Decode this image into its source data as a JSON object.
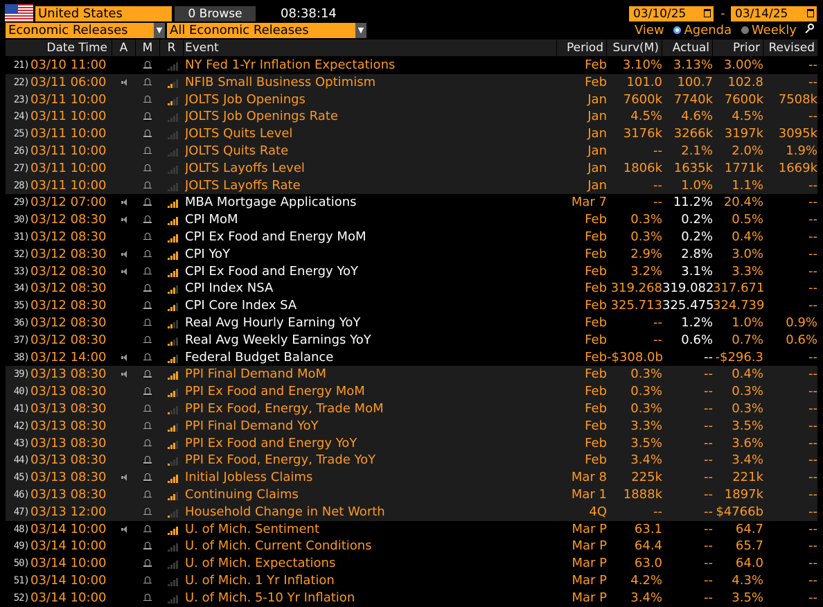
{
  "header": {
    "country": "United States",
    "browse_label": "0 Browse",
    "clock": "08:38:14",
    "date_from": "03/10/25",
    "date_to": "03/14/25",
    "date_sep": "-",
    "category": "Economic Releases",
    "filter": "All Economic Releases",
    "view_label": "View",
    "view_agenda": "Agenda",
    "view_weekly": "Weekly"
  },
  "colors": {
    "accent": "#ffa31a",
    "row_alt": "#1d1d1d"
  },
  "columns": [
    "Date Time",
    "A",
    "M",
    "R",
    "Event",
    "Period",
    "Surv(M)",
    "Actual",
    "Prior",
    "Revised"
  ],
  "rows": [
    {
      "idx": "21)",
      "dt": "03/10 11:00",
      "a": false,
      "r": 0,
      "event": "NY Fed 1-Yr Inflation Expectations",
      "period": "Feb",
      "surv": "3.10%",
      "actual": "3.13%",
      "prior": "3.00%",
      "revised": "--",
      "white": false,
      "bg": "first"
    },
    {
      "idx": "22)",
      "dt": "03/11 06:00",
      "a": true,
      "r": 2,
      "event": "NFIB Small Business Optimism",
      "period": "Feb",
      "surv": "101.0",
      "actual": "100.7",
      "prior": "102.8",
      "revised": "--",
      "white": false,
      "bg": "gray"
    },
    {
      "idx": "23)",
      "dt": "03/11 10:00",
      "a": false,
      "r": 2,
      "event": "JOLTS Job Openings",
      "period": "Jan",
      "surv": "7600k",
      "actual": "7740k",
      "prior": "7600k",
      "revised": "7508k",
      "white": false,
      "bg": "gray"
    },
    {
      "idx": "24)",
      "dt": "03/11 10:00",
      "a": false,
      "r": 0,
      "event": "JOLTS Job Openings Rate",
      "period": "Jan",
      "surv": "4.5%",
      "actual": "4.6%",
      "prior": "4.5%",
      "revised": "--",
      "white": false,
      "bg": "gray"
    },
    {
      "idx": "25)",
      "dt": "03/11 10:00",
      "a": false,
      "r": 0,
      "event": "JOLTS Quits Level",
      "period": "Jan",
      "surv": "3176k",
      "actual": "3266k",
      "prior": "3197k",
      "revised": "3095k",
      "white": false,
      "bg": "gray"
    },
    {
      "idx": "26)",
      "dt": "03/11 10:00",
      "a": false,
      "r": 0,
      "event": "JOLTS Quits Rate",
      "period": "Jan",
      "surv": "--",
      "actual": "2.1%",
      "prior": "2.0%",
      "revised": "1.9%",
      "white": false,
      "bg": "gray"
    },
    {
      "idx": "27)",
      "dt": "03/11 10:00",
      "a": false,
      "r": 0,
      "event": "JOLTS Layoffs Level",
      "period": "Jan",
      "surv": "1806k",
      "actual": "1635k",
      "prior": "1771k",
      "revised": "1669k",
      "white": false,
      "bg": "gray"
    },
    {
      "idx": "28)",
      "dt": "03/11 10:00",
      "a": false,
      "r": 0,
      "event": "JOLTS Layoffs Rate",
      "period": "Jan",
      "surv": "--",
      "actual": "1.0%",
      "prior": "1.1%",
      "revised": "--",
      "white": false,
      "bg": "gray"
    },
    {
      "idx": "29)",
      "dt": "03/12 07:00",
      "a": true,
      "r": 4,
      "event": "MBA Mortgage Applications",
      "period": "Mar 7",
      "surv": "--",
      "actual": "11.2%",
      "prior": "20.4%",
      "revised": "--",
      "white": true,
      "bg": "dark"
    },
    {
      "idx": "30)",
      "dt": "03/12 08:30",
      "a": true,
      "r": 4,
      "event": "CPI MoM",
      "period": "Feb",
      "surv": "0.3%",
      "actual": "0.2%",
      "prior": "0.5%",
      "revised": "--",
      "white": true,
      "bg": "dark"
    },
    {
      "idx": "31)",
      "dt": "03/12 08:30",
      "a": false,
      "r": 4,
      "event": "CPI Ex Food and Energy MoM",
      "period": "Feb",
      "surv": "0.3%",
      "actual": "0.2%",
      "prior": "0.4%",
      "revised": "--",
      "white": true,
      "bg": "dark"
    },
    {
      "idx": "32)",
      "dt": "03/12 08:30",
      "a": true,
      "r": 4,
      "event": "CPI YoY",
      "period": "Feb",
      "surv": "2.9%",
      "actual": "2.8%",
      "prior": "3.0%",
      "revised": "--",
      "white": true,
      "bg": "dark"
    },
    {
      "idx": "33)",
      "dt": "03/12 08:30",
      "a": true,
      "r": 4,
      "event": "CPI Ex Food and Energy YoY",
      "period": "Feb",
      "surv": "3.2%",
      "actual": "3.1%",
      "prior": "3.3%",
      "revised": "--",
      "white": true,
      "bg": "dark"
    },
    {
      "idx": "34)",
      "dt": "03/12 08:30",
      "a": false,
      "r": 3,
      "event": "CPI Index NSA",
      "period": "Feb",
      "surv": "319.268",
      "actual": "319.082",
      "prior": "317.671",
      "revised": "--",
      "white": true,
      "bg": "dark"
    },
    {
      "idx": "35)",
      "dt": "03/12 08:30",
      "a": false,
      "r": 3,
      "event": "CPI Core Index SA",
      "period": "Feb",
      "surv": "325.713",
      "actual": "325.475",
      "prior": "324.739",
      "revised": "--",
      "white": true,
      "bg": "dark"
    },
    {
      "idx": "36)",
      "dt": "03/12 08:30",
      "a": false,
      "r": 2,
      "event": "Real Avg Hourly Earning YoY",
      "period": "Feb",
      "surv": "--",
      "actual": "1.2%",
      "prior": "1.0%",
      "revised": "0.9%",
      "white": true,
      "bg": "dark"
    },
    {
      "idx": "37)",
      "dt": "03/12 08:30",
      "a": false,
      "r": 2,
      "event": "Real Avg Weekly Earnings YoY",
      "period": "Feb",
      "surv": "--",
      "actual": "0.6%",
      "prior": "0.7%",
      "revised": "0.6%",
      "white": true,
      "bg": "dark"
    },
    {
      "idx": "38)",
      "dt": "03/12 14:00",
      "a": true,
      "r": 3,
      "event": "Federal Budget Balance",
      "period": "Feb",
      "surv": "-$308.0b",
      "actual": "--",
      "prior": "-$296.3",
      "revised": "--",
      "white": true,
      "bg": "dark"
    },
    {
      "idx": "39)",
      "dt": "03/13 08:30",
      "a": true,
      "r": 4,
      "event": "PPI Final Demand MoM",
      "period": "Feb",
      "surv": "0.3%",
      "actual": "--",
      "prior": "0.4%",
      "revised": "--",
      "white": false,
      "bg": "gray"
    },
    {
      "idx": "40)",
      "dt": "03/13 08:30",
      "a": false,
      "r": 3,
      "event": "PPI Ex Food and Energy MoM",
      "period": "Feb",
      "surv": "0.3%",
      "actual": "--",
      "prior": "0.3%",
      "revised": "--",
      "white": false,
      "bg": "gray"
    },
    {
      "idx": "41)",
      "dt": "03/13 08:30",
      "a": false,
      "r": 1,
      "event": "PPI Ex Food, Energy, Trade MoM",
      "period": "Feb",
      "surv": "0.3%",
      "actual": "--",
      "prior": "0.3%",
      "revised": "--",
      "white": false,
      "bg": "gray"
    },
    {
      "idx": "42)",
      "dt": "03/13 08:30",
      "a": false,
      "r": 3,
      "event": "PPI Final Demand YoY",
      "period": "Feb",
      "surv": "3.3%",
      "actual": "--",
      "prior": "3.5%",
      "revised": "--",
      "white": false,
      "bg": "gray"
    },
    {
      "idx": "43)",
      "dt": "03/13 08:30",
      "a": false,
      "r": 3,
      "event": "PPI Ex Food and Energy YoY",
      "period": "Feb",
      "surv": "3.5%",
      "actual": "--",
      "prior": "3.6%",
      "revised": "--",
      "white": false,
      "bg": "gray"
    },
    {
      "idx": "44)",
      "dt": "03/13 08:30",
      "a": false,
      "r": 1,
      "event": "PPI Ex Food, Energy, Trade YoY",
      "period": "Feb",
      "surv": "3.4%",
      "actual": "--",
      "prior": "3.4%",
      "revised": "--",
      "white": false,
      "bg": "gray"
    },
    {
      "idx": "45)",
      "dt": "03/13 08:30",
      "a": true,
      "r": 4,
      "event": "Initial Jobless Claims",
      "period": "Mar 8",
      "surv": "225k",
      "actual": "--",
      "prior": "221k",
      "revised": "--",
      "white": false,
      "bg": "gray"
    },
    {
      "idx": "46)",
      "dt": "03/13 08:30",
      "a": false,
      "r": 3,
      "event": "Continuing Claims",
      "period": "Mar 1",
      "surv": "1888k",
      "actual": "--",
      "prior": "1897k",
      "revised": "--",
      "white": false,
      "bg": "gray"
    },
    {
      "idx": "47)",
      "dt": "03/13 12:00",
      "a": false,
      "r": 1,
      "event": "Household Change in Net Worth",
      "period": "4Q",
      "surv": "--",
      "actual": "--",
      "prior": "$4766b",
      "revised": "--",
      "white": false,
      "bg": "gray"
    },
    {
      "idx": "48)",
      "dt": "03/14 10:00",
      "a": true,
      "r": 4,
      "event": "U. of Mich. Sentiment",
      "period": "Mar P",
      "surv": "63.1",
      "actual": "--",
      "prior": "64.7",
      "revised": "--",
      "white": false,
      "bg": "dark"
    },
    {
      "idx": "49)",
      "dt": "03/14 10:00",
      "a": false,
      "r": 0,
      "event": "U. of Mich. Current Conditions",
      "period": "Mar P",
      "surv": "64.4",
      "actual": "--",
      "prior": "65.7",
      "revised": "--",
      "white": false,
      "bg": "dark"
    },
    {
      "idx": "50)",
      "dt": "03/14 10:00",
      "a": false,
      "r": 0,
      "event": "U. of Mich. Expectations",
      "period": "Mar P",
      "surv": "63.0",
      "actual": "--",
      "prior": "64.0",
      "revised": "--",
      "white": false,
      "bg": "dark"
    },
    {
      "idx": "51)",
      "dt": "03/14 10:00",
      "a": false,
      "r": 0,
      "event": "U. of Mich. 1 Yr Inflation",
      "period": "Mar P",
      "surv": "4.2%",
      "actual": "--",
      "prior": "4.3%",
      "revised": "--",
      "white": false,
      "bg": "dark"
    },
    {
      "idx": "52)",
      "dt": "03/14 10:00",
      "a": false,
      "r": 0,
      "event": "U. of Mich. 5-10 Yr Inflation",
      "period": "Mar P",
      "surv": "3.4%",
      "actual": "--",
      "prior": "3.5%",
      "revised": "--",
      "white": false,
      "bg": "dark"
    }
  ]
}
